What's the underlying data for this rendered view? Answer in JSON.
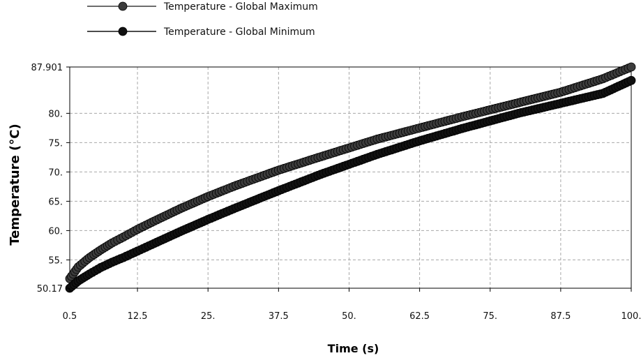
{
  "chart_data": {
    "type": "line",
    "xlabel": "Time (s)",
    "ylabel": "Temperature (°C)",
    "xlim": [
      0.5,
      100
    ],
    "ylim": [
      50.17,
      87.901
    ],
    "x_ticks": [
      "0.5",
      "12.5",
      "25.",
      "37.5",
      "50.",
      "62.5",
      "75.",
      "87.5",
      "100."
    ],
    "x_tick_values": [
      0.5,
      12.5,
      25,
      37.5,
      50,
      62.5,
      75,
      87.5,
      100
    ],
    "y_ticks": [
      "50.17",
      "55.",
      "60.",
      "65.",
      "70.",
      "75.",
      "80.",
      "87.901"
    ],
    "y_tick_values": [
      50.17,
      55,
      60,
      65,
      70,
      75,
      80,
      87.901
    ],
    "grid": true,
    "legend_position": "top-left",
    "x": [
      0.5,
      2,
      4,
      6,
      8,
      10,
      12.5,
      15,
      20,
      25,
      30,
      37.5,
      45,
      50,
      55,
      62.5,
      70,
      75,
      80,
      87.5,
      95,
      100
    ],
    "series": [
      {
        "name": "Temperature - Global Maximum",
        "color": "#3c3c3c",
        "values": [
          51.8,
          53.8,
          55.4,
          56.7,
          57.9,
          58.9,
          60.2,
          61.4,
          63.7,
          65.8,
          67.7,
          70.3,
          72.6,
          74.1,
          75.6,
          77.5,
          79.4,
          80.6,
          81.8,
          83.6,
          85.9,
          87.901
        ]
      },
      {
        "name": "Temperature - Global Minimum",
        "color": "#111111",
        "values": [
          50.17,
          51.4,
          52.6,
          53.7,
          54.6,
          55.4,
          56.5,
          57.6,
          59.8,
          61.9,
          63.9,
          66.8,
          69.6,
          71.3,
          73.0,
          75.3,
          77.4,
          78.7,
          80.0,
          81.7,
          83.4,
          85.6
        ]
      }
    ]
  }
}
